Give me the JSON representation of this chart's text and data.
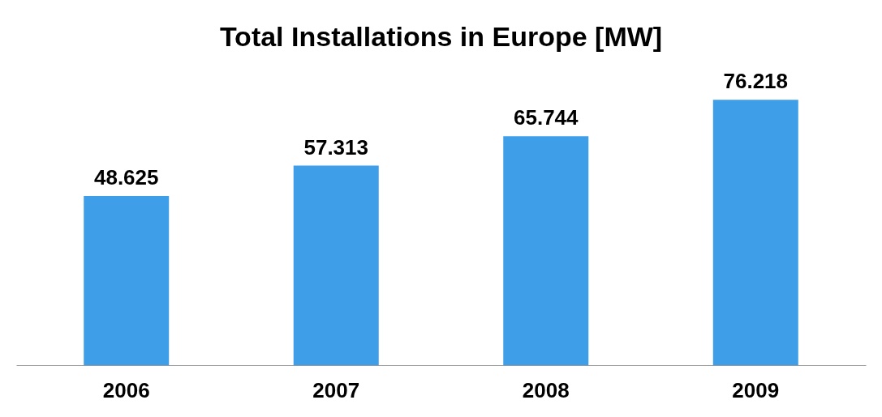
{
  "chart_data": {
    "type": "bar",
    "title": "Total Installations in Europe [MW]",
    "categories": [
      "2006",
      "2007",
      "2008",
      "2009"
    ],
    "values": [
      48.625,
      57.313,
      65.744,
      76.218
    ],
    "color": "#3f9ee8",
    "data_labels": true,
    "grid": false
  }
}
